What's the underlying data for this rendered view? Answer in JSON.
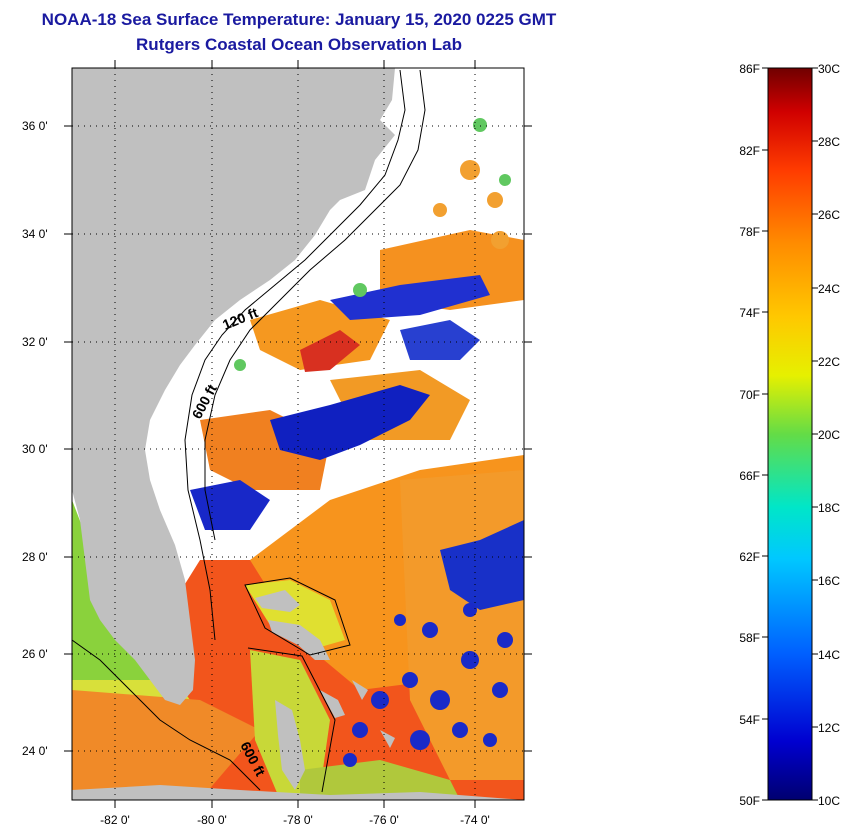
{
  "header": {
    "title": "NOAA-18 Sea Surface Temperature:  January 15, 2020 0225 GMT",
    "subtitle": "Rutgers Coastal Ocean Observation Lab"
  },
  "map": {
    "lat_labels": [
      "36 0'",
      "34 0'",
      "32 0'",
      "30 0'",
      "28 0'",
      "26 0'",
      "24 0'"
    ],
    "lon_labels": [
      "-82 0'",
      "-80 0'",
      "-78 0'",
      "-76 0'",
      "-74 0'"
    ],
    "contour_labels": [
      "120 ft",
      "600 ft",
      "600 ft"
    ],
    "colors": {
      "land": "#c0c0c0",
      "cloud": "#ffffff",
      "warm": "#f2551c",
      "orange": "#f7941d",
      "yellow": "#e6e61e",
      "green": "#8ad23c",
      "cold": "#1020c0"
    }
  },
  "colorbar": {
    "fahrenheit_labels": [
      "86F",
      "82F",
      "78F",
      "74F",
      "70F",
      "66F",
      "62F",
      "58F",
      "54F",
      "50F"
    ],
    "celsius_labels": [
      "30C",
      "28C",
      "26C",
      "24C",
      "22C",
      "20C",
      "18C",
      "16C",
      "14C",
      "12C",
      "10C"
    ]
  }
}
